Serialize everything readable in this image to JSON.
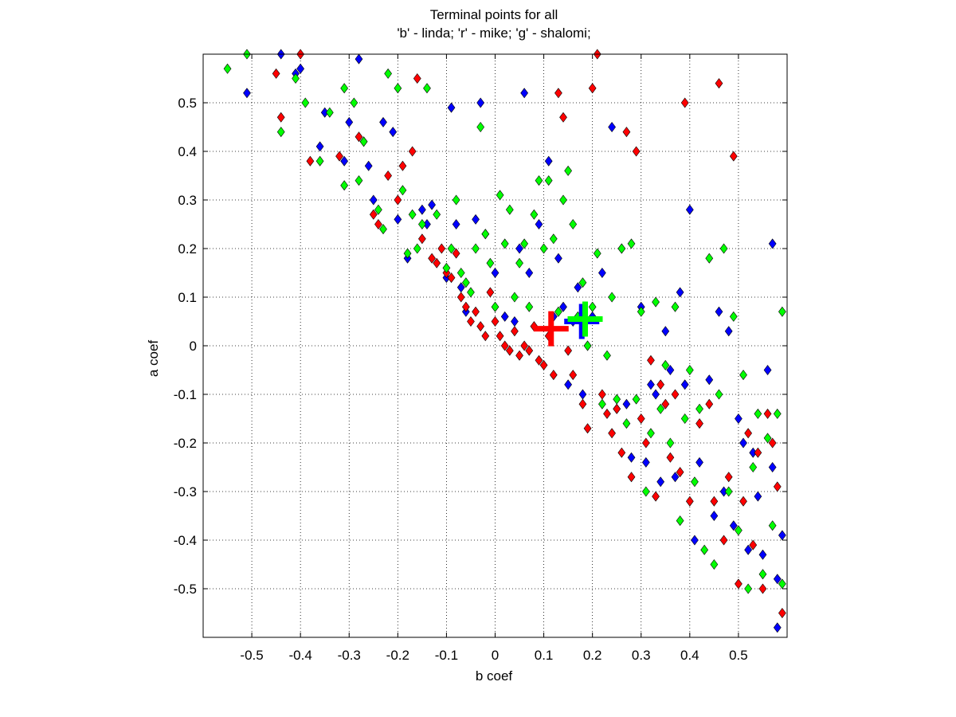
{
  "chart_data": {
    "type": "scatter",
    "title": "Terminal points for all",
    "subtitle": "'b' - linda; 'r' - mike; 'g' - shalomi;",
    "xlabel": "b coef",
    "ylabel": "a coef",
    "xlim": [
      -0.6,
      0.6
    ],
    "ylim": [
      -0.6,
      0.6
    ],
    "xticks": [
      -0.5,
      -0.4,
      -0.3,
      -0.2,
      -0.1,
      0,
      0.1,
      0.2,
      0.3,
      0.4,
      0.5
    ],
    "yticks": [
      -0.5,
      -0.4,
      -0.3,
      -0.2,
      -0.1,
      0,
      0.1,
      0.2,
      0.3,
      0.4,
      0.5
    ],
    "xtick_labels": [
      "-0.5",
      "-0.4",
      "-0.3",
      "-0.2",
      "-0.1",
      "0",
      "0.1",
      "0.2",
      "0.3",
      "0.4",
      "0.5"
    ],
    "ytick_labels": [
      "-0.5",
      "-0.4",
      "-0.3",
      "-0.2",
      "-0.1",
      "0",
      "0.1",
      "0.2",
      "0.3",
      "0.4",
      "0.5"
    ],
    "grid": true,
    "grid_style": "dotted",
    "marker": "diamond",
    "series": [
      {
        "name": "linda",
        "color": "#0000ff",
        "points": [
          [
            -0.51,
            0.52
          ],
          [
            -0.44,
            0.6
          ],
          [
            -0.41,
            0.56
          ],
          [
            -0.4,
            0.57
          ],
          [
            -0.36,
            0.41
          ],
          [
            -0.35,
            0.48
          ],
          [
            -0.31,
            0.38
          ],
          [
            -0.3,
            0.46
          ],
          [
            -0.28,
            0.59
          ],
          [
            -0.26,
            0.37
          ],
          [
            -0.25,
            0.3
          ],
          [
            -0.23,
            0.46
          ],
          [
            -0.21,
            0.44
          ],
          [
            -0.2,
            0.26
          ],
          [
            -0.18,
            0.18
          ],
          [
            -0.15,
            0.28
          ],
          [
            -0.14,
            0.25
          ],
          [
            -0.13,
            0.29
          ],
          [
            -0.1,
            0.14
          ],
          [
            -0.09,
            0.49
          ],
          [
            -0.08,
            0.25
          ],
          [
            -0.07,
            0.12
          ],
          [
            -0.06,
            0.07
          ],
          [
            -0.04,
            0.26
          ],
          [
            -0.03,
            0.5
          ],
          [
            -0.02,
            0.23
          ],
          [
            0.0,
            0.15
          ],
          [
            0.02,
            0.06
          ],
          [
            0.04,
            0.05
          ],
          [
            0.05,
            0.2
          ],
          [
            0.06,
            0.52
          ],
          [
            0.07,
            0.15
          ],
          [
            0.09,
            0.25
          ],
          [
            0.11,
            0.38
          ],
          [
            0.12,
            0.06
          ],
          [
            0.13,
            0.18
          ],
          [
            0.14,
            0.08
          ],
          [
            0.15,
            -0.08
          ],
          [
            0.16,
            0.05
          ],
          [
            0.17,
            0.12
          ],
          [
            0.18,
            -0.1
          ],
          [
            0.19,
            0.0
          ],
          [
            0.2,
            0.06
          ],
          [
            0.22,
            0.15
          ],
          [
            0.24,
            0.45
          ],
          [
            0.25,
            -0.13
          ],
          [
            0.26,
            0.2
          ],
          [
            0.27,
            -0.12
          ],
          [
            0.28,
            -0.23
          ],
          [
            0.3,
            0.08
          ],
          [
            0.31,
            -0.24
          ],
          [
            0.32,
            -0.08
          ],
          [
            0.33,
            -0.1
          ],
          [
            0.34,
            -0.28
          ],
          [
            0.35,
            0.03
          ],
          [
            0.36,
            -0.05
          ],
          [
            0.37,
            -0.27
          ],
          [
            0.38,
            0.11
          ],
          [
            0.39,
            -0.08
          ],
          [
            0.4,
            0.28
          ],
          [
            0.41,
            -0.4
          ],
          [
            0.42,
            -0.24
          ],
          [
            0.44,
            -0.07
          ],
          [
            0.45,
            -0.35
          ],
          [
            0.46,
            0.07
          ],
          [
            0.47,
            -0.3
          ],
          [
            0.48,
            0.03
          ],
          [
            0.49,
            -0.37
          ],
          [
            0.5,
            -0.15
          ],
          [
            0.51,
            -0.2
          ],
          [
            0.52,
            -0.42
          ],
          [
            0.53,
            -0.22
          ],
          [
            0.54,
            -0.31
          ],
          [
            0.55,
            -0.43
          ],
          [
            0.56,
            -0.05
          ],
          [
            0.57,
            -0.25
          ],
          [
            0.57,
            0.21
          ],
          [
            0.58,
            -0.48
          ],
          [
            0.58,
            -0.58
          ],
          [
            0.59,
            -0.39
          ]
        ]
      },
      {
        "name": "mike",
        "color": "#ff0000",
        "points": [
          [
            -0.45,
            0.56
          ],
          [
            -0.44,
            0.47
          ],
          [
            -0.4,
            0.6
          ],
          [
            -0.38,
            0.38
          ],
          [
            -0.32,
            0.39
          ],
          [
            -0.28,
            0.43
          ],
          [
            -0.27,
            0.42
          ],
          [
            -0.25,
            0.27
          ],
          [
            -0.24,
            0.25
          ],
          [
            -0.22,
            0.35
          ],
          [
            -0.2,
            0.3
          ],
          [
            -0.19,
            0.37
          ],
          [
            -0.17,
            0.4
          ],
          [
            -0.16,
            0.55
          ],
          [
            -0.15,
            0.22
          ],
          [
            -0.13,
            0.18
          ],
          [
            -0.12,
            0.17
          ],
          [
            -0.11,
            0.2
          ],
          [
            -0.1,
            0.15
          ],
          [
            -0.09,
            0.14
          ],
          [
            -0.08,
            0.19
          ],
          [
            -0.07,
            0.1
          ],
          [
            -0.06,
            0.08
          ],
          [
            -0.05,
            0.05
          ],
          [
            -0.04,
            0.07
          ],
          [
            -0.03,
            0.04
          ],
          [
            -0.02,
            0.02
          ],
          [
            -0.01,
            0.11
          ],
          [
            0.0,
            0.05
          ],
          [
            0.01,
            0.02
          ],
          [
            0.02,
            0.0
          ],
          [
            0.03,
            -0.01
          ],
          [
            0.04,
            0.03
          ],
          [
            0.05,
            -0.02
          ],
          [
            0.06,
            0.0
          ],
          [
            0.07,
            -0.01
          ],
          [
            0.08,
            0.04
          ],
          [
            0.09,
            -0.03
          ],
          [
            0.1,
            -0.04
          ],
          [
            0.11,
            0.02
          ],
          [
            0.12,
            -0.06
          ],
          [
            0.13,
            0.52
          ],
          [
            0.14,
            0.47
          ],
          [
            0.15,
            -0.01
          ],
          [
            0.16,
            -0.06
          ],
          [
            0.18,
            -0.12
          ],
          [
            0.19,
            -0.17
          ],
          [
            0.2,
            0.53
          ],
          [
            0.21,
            0.6
          ],
          [
            0.22,
            -0.1
          ],
          [
            0.23,
            -0.14
          ],
          [
            0.24,
            -0.18
          ],
          [
            0.25,
            -0.13
          ],
          [
            0.26,
            -0.22
          ],
          [
            0.27,
            0.44
          ],
          [
            0.28,
            -0.27
          ],
          [
            0.29,
            0.4
          ],
          [
            0.3,
            -0.15
          ],
          [
            0.31,
            -0.2
          ],
          [
            0.32,
            -0.03
          ],
          [
            0.33,
            -0.31
          ],
          [
            0.34,
            -0.08
          ],
          [
            0.35,
            -0.12
          ],
          [
            0.36,
            -0.23
          ],
          [
            0.37,
            -0.1
          ],
          [
            0.38,
            -0.26
          ],
          [
            0.39,
            0.5
          ],
          [
            0.4,
            -0.32
          ],
          [
            0.42,
            -0.16
          ],
          [
            0.44,
            -0.12
          ],
          [
            0.45,
            -0.32
          ],
          [
            0.46,
            0.54
          ],
          [
            0.47,
            -0.4
          ],
          [
            0.48,
            -0.27
          ],
          [
            0.49,
            0.39
          ],
          [
            0.5,
            -0.49
          ],
          [
            0.51,
            -0.32
          ],
          [
            0.52,
            -0.18
          ],
          [
            0.53,
            -0.41
          ],
          [
            0.54,
            -0.22
          ],
          [
            0.55,
            -0.5
          ],
          [
            0.56,
            -0.14
          ],
          [
            0.57,
            -0.2
          ],
          [
            0.58,
            -0.29
          ],
          [
            0.59,
            -0.55
          ]
        ]
      },
      {
        "name": "shalomi",
        "color": "#00ff00",
        "points": [
          [
            -0.55,
            0.57
          ],
          [
            -0.51,
            0.6
          ],
          [
            -0.44,
            0.44
          ],
          [
            -0.41,
            0.55
          ],
          [
            -0.39,
            0.5
          ],
          [
            -0.36,
            0.38
          ],
          [
            -0.34,
            0.48
          ],
          [
            -0.31,
            0.33
          ],
          [
            -0.31,
            0.53
          ],
          [
            -0.29,
            0.5
          ],
          [
            -0.28,
            0.34
          ],
          [
            -0.27,
            0.42
          ],
          [
            -0.24,
            0.28
          ],
          [
            -0.23,
            0.24
          ],
          [
            -0.22,
            0.56
          ],
          [
            -0.2,
            0.53
          ],
          [
            -0.19,
            0.32
          ],
          [
            -0.18,
            0.19
          ],
          [
            -0.17,
            0.27
          ],
          [
            -0.16,
            0.2
          ],
          [
            -0.15,
            0.25
          ],
          [
            -0.14,
            0.53
          ],
          [
            -0.12,
            0.27
          ],
          [
            -0.1,
            0.16
          ],
          [
            -0.09,
            0.2
          ],
          [
            -0.08,
            0.3
          ],
          [
            -0.07,
            0.15
          ],
          [
            -0.06,
            0.13
          ],
          [
            -0.05,
            0.11
          ],
          [
            -0.04,
            0.2
          ],
          [
            -0.03,
            0.45
          ],
          [
            -0.02,
            0.23
          ],
          [
            -0.01,
            0.17
          ],
          [
            0.0,
            0.08
          ],
          [
            0.01,
            0.31
          ],
          [
            0.02,
            0.21
          ],
          [
            0.03,
            0.28
          ],
          [
            0.04,
            0.1
          ],
          [
            0.05,
            0.17
          ],
          [
            0.06,
            0.21
          ],
          [
            0.07,
            0.08
          ],
          [
            0.08,
            0.27
          ],
          [
            0.09,
            0.34
          ],
          [
            0.1,
            0.2
          ],
          [
            0.11,
            0.34
          ],
          [
            0.12,
            0.22
          ],
          [
            0.13,
            0.07
          ],
          [
            0.14,
            0.3
          ],
          [
            0.15,
            0.36
          ],
          [
            0.16,
            0.25
          ],
          [
            0.17,
            0.06
          ],
          [
            0.18,
            0.13
          ],
          [
            0.19,
            0.0
          ],
          [
            0.2,
            0.08
          ],
          [
            0.21,
            0.19
          ],
          [
            0.22,
            -0.12
          ],
          [
            0.23,
            -0.02
          ],
          [
            0.24,
            0.1
          ],
          [
            0.25,
            -0.11
          ],
          [
            0.26,
            0.2
          ],
          [
            0.27,
            -0.16
          ],
          [
            0.28,
            0.21
          ],
          [
            0.29,
            -0.11
          ],
          [
            0.3,
            0.07
          ],
          [
            0.31,
            -0.3
          ],
          [
            0.32,
            -0.18
          ],
          [
            0.33,
            0.09
          ],
          [
            0.34,
            -0.13
          ],
          [
            0.35,
            -0.04
          ],
          [
            0.36,
            -0.2
          ],
          [
            0.37,
            0.08
          ],
          [
            0.38,
            -0.36
          ],
          [
            0.39,
            -0.15
          ],
          [
            0.4,
            -0.05
          ],
          [
            0.41,
            -0.28
          ],
          [
            0.42,
            -0.13
          ],
          [
            0.43,
            -0.42
          ],
          [
            0.44,
            0.18
          ],
          [
            0.45,
            -0.45
          ],
          [
            0.46,
            -0.1
          ],
          [
            0.47,
            0.2
          ],
          [
            0.48,
            -0.3
          ],
          [
            0.49,
            0.06
          ],
          [
            0.5,
            -0.38
          ],
          [
            0.51,
            -0.06
          ],
          [
            0.52,
            -0.5
          ],
          [
            0.53,
            -0.25
          ],
          [
            0.54,
            -0.14
          ],
          [
            0.55,
            -0.47
          ],
          [
            0.56,
            -0.19
          ],
          [
            0.57,
            -0.37
          ],
          [
            0.58,
            -0.14
          ],
          [
            0.59,
            -0.49
          ],
          [
            0.59,
            0.07
          ]
        ]
      }
    ],
    "means": [
      {
        "name": "mike",
        "color": "#ff0000",
        "x": 0.115,
        "y": 0.035
      },
      {
        "name": "linda",
        "color": "#0000ff",
        "x": 0.178,
        "y": 0.05
      },
      {
        "name": "shalomi",
        "color": "#00ff00",
        "x": 0.185,
        "y": 0.055
      }
    ]
  }
}
